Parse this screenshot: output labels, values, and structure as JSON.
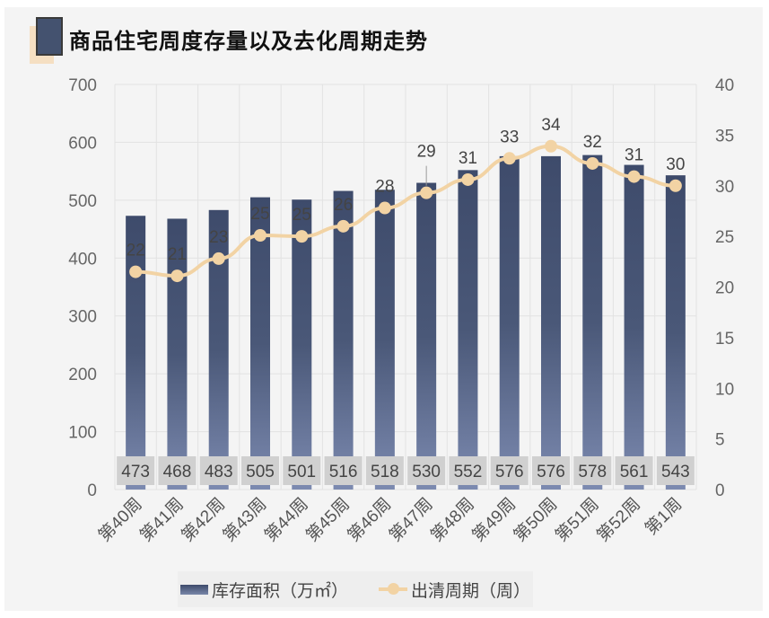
{
  "title": "商品住宅周度存量以及去化周期走势",
  "colors": {
    "bar_top": "#3e4b6b",
    "bar_bottom": "#7c8ab0",
    "line": "#f2d3a4",
    "label_box": "#d0d0d0"
  },
  "chart_data": {
    "type": "bar+line",
    "categories": [
      "第40周",
      "第41周",
      "第42周",
      "第43周",
      "第44周",
      "第45周",
      "第46周",
      "第47周",
      "第48周",
      "第49周",
      "第50周",
      "第51周",
      "第52周",
      "第1周"
    ],
    "series": [
      {
        "name": "库存面积（万㎡）",
        "type": "bar",
        "axis": "left",
        "values": [
          473,
          468,
          483,
          505,
          501,
          516,
          518,
          530,
          552,
          576,
          576,
          578,
          561,
          543
        ],
        "labels": [
          "473",
          "468",
          "483",
          "505",
          "501",
          "516",
          "518",
          "530",
          "552",
          "576",
          "576",
          "578",
          "561",
          "543"
        ]
      },
      {
        "name": "出清周期（周）",
        "type": "line",
        "axis": "right",
        "values": [
          21.5,
          21.1,
          22.8,
          25.1,
          25.0,
          26.0,
          27.8,
          29.3,
          30.6,
          32.7,
          33.9,
          32.2,
          30.9,
          30.0
        ],
        "labels": [
          "22",
          "21",
          "23",
          "25",
          "25",
          "26",
          "28",
          "29",
          "31",
          "33",
          "34",
          "32",
          "31",
          "30"
        ]
      }
    ],
    "y_left": {
      "lim": [
        0,
        700
      ],
      "ticks": [
        "0",
        "100",
        "200",
        "300",
        "400",
        "500",
        "600",
        "700"
      ]
    },
    "y_right": {
      "lim": [
        0,
        40
      ],
      "ticks": [
        "0",
        "5",
        "10",
        "15",
        "20",
        "25",
        "30",
        "35",
        "40"
      ]
    },
    "grid": true,
    "legend": "bottom"
  }
}
